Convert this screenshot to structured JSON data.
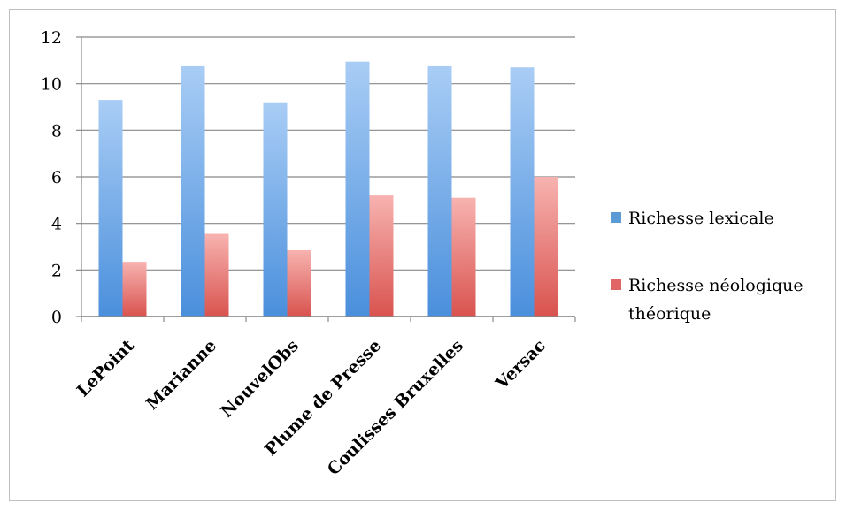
{
  "chart_data": {
    "type": "bar",
    "categories": [
      "LePoint",
      "Marianne",
      "NouvelObs",
      "Plume de Presse",
      "Coulisses Bruxelles",
      "Versac"
    ],
    "series": [
      {
        "name": "Richesse lexicale",
        "values": [
          9.3,
          10.75,
          9.2,
          10.95,
          10.75,
          10.7
        ],
        "color": "#5b9bd5"
      },
      {
        "name": "Richesse néologique théorique",
        "values": [
          2.35,
          3.55,
          2.85,
          5.2,
          5.1,
          6.0
        ],
        "color": "#e06666"
      }
    ],
    "yticks": [
      "0",
      "2",
      "4",
      "6",
      "8",
      "10",
      "12"
    ],
    "ylim": [
      0,
      12
    ],
    "grid": true,
    "legend_position": "right",
    "legend_lines": [
      [
        "Richesse lexicale"
      ],
      [
        "Richesse néologique",
        "théorique"
      ]
    ]
  }
}
